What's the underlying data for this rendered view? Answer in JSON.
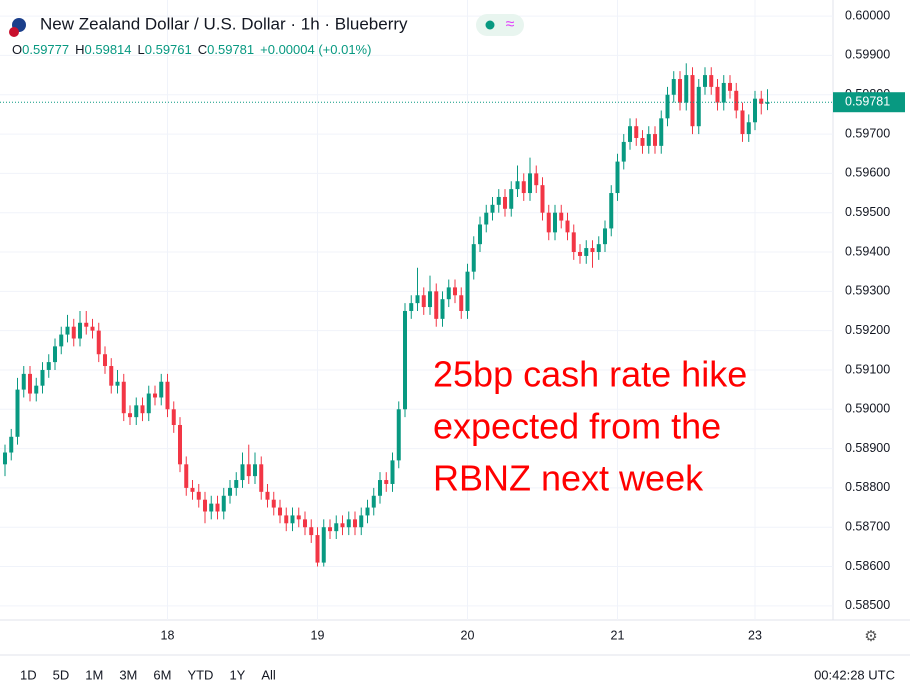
{
  "chart_data": {
    "type": "candlestick",
    "title": "New Zealand Dollar / U.S. Dollar · 1h · Blueberry",
    "header_labels": [
      "O",
      "H",
      "L",
      "C"
    ],
    "change": "+0.00004 (+0.01%)",
    "annotation": [
      "25bp cash rate hike",
      "expected from the",
      "RBNZ next week"
    ],
    "up_color": "#089981",
    "down_color": "#f23645",
    "annotation_color": "#ff0000",
    "ylim": [
      0.58464,
      0.60041
    ],
    "yticks": [
      {
        "value": 0.585,
        "label": "0.58500"
      },
      {
        "value": 0.586,
        "label": "0.58600"
      },
      {
        "value": 0.587,
        "label": "0.58700"
      },
      {
        "value": 0.588,
        "label": "0.58800"
      },
      {
        "value": 0.589,
        "label": "0.58900"
      },
      {
        "value": 0.59,
        "label": "0.59000"
      },
      {
        "value": 0.591,
        "label": "0.59100"
      },
      {
        "value": 0.592,
        "label": "0.59200"
      },
      {
        "value": 0.593,
        "label": "0.59300"
      },
      {
        "value": 0.594,
        "label": "0.59400"
      },
      {
        "value": 0.595,
        "label": "0.59500"
      },
      {
        "value": 0.596,
        "label": "0.59600"
      },
      {
        "value": 0.597,
        "label": "0.59700"
      },
      {
        "value": 0.598,
        "label": "0.59800"
      },
      {
        "value": 0.599,
        "label": "0.59900"
      },
      {
        "value": 0.6,
        "label": "0.60000"
      }
    ],
    "xticks": [
      {
        "value": 26,
        "label": "18"
      },
      {
        "value": 50,
        "label": "19"
      },
      {
        "value": 74,
        "label": "20"
      },
      {
        "value": 98,
        "label": "21"
      },
      {
        "value": 120,
        "label": "23"
      }
    ],
    "grid": true,
    "ohlc": [
      [
        0.5886,
        0.5891,
        0.5883,
        0.5889
      ],
      [
        0.5889,
        0.5895,
        0.5887,
        0.5893
      ],
      [
        0.5893,
        0.5908,
        0.5891,
        0.5905
      ],
      [
        0.5905,
        0.5911,
        0.5903,
        0.5909
      ],
      [
        0.5909,
        0.5911,
        0.5902,
        0.5904
      ],
      [
        0.5904,
        0.5908,
        0.5902,
        0.5906
      ],
      [
        0.5906,
        0.5912,
        0.5904,
        0.591
      ],
      [
        0.591,
        0.5914,
        0.5908,
        0.5912
      ],
      [
        0.5912,
        0.5918,
        0.591,
        0.5916
      ],
      [
        0.5916,
        0.5921,
        0.5914,
        0.5919
      ],
      [
        0.5919,
        0.5924,
        0.5917,
        0.5921
      ],
      [
        0.5921,
        0.5923,
        0.5916,
        0.5918
      ],
      [
        0.5918,
        0.5925,
        0.5916,
        0.5922
      ],
      [
        0.5922,
        0.5925,
        0.5919,
        0.5921
      ],
      [
        0.5921,
        0.5923,
        0.5918,
        0.592
      ],
      [
        0.592,
        0.5922,
        0.5912,
        0.5914
      ],
      [
        0.5914,
        0.5916,
        0.5909,
        0.5911
      ],
      [
        0.5911,
        0.5913,
        0.5904,
        0.5906
      ],
      [
        0.5906,
        0.591,
        0.5904,
        0.5907
      ],
      [
        0.5907,
        0.5909,
        0.5897,
        0.5899
      ],
      [
        0.5899,
        0.5901,
        0.5896,
        0.5898
      ],
      [
        0.5898,
        0.5903,
        0.5896,
        0.5901
      ],
      [
        0.5901,
        0.5903,
        0.5897,
        0.5899
      ],
      [
        0.5899,
        0.5906,
        0.5897,
        0.5904
      ],
      [
        0.5904,
        0.5906,
        0.5901,
        0.5903
      ],
      [
        0.5903,
        0.5909,
        0.5901,
        0.5907
      ],
      [
        0.5907,
        0.5909,
        0.5898,
        0.59
      ],
      [
        0.59,
        0.5902,
        0.5894,
        0.5896
      ],
      [
        0.5896,
        0.5898,
        0.5884,
        0.5886
      ],
      [
        0.5886,
        0.5888,
        0.5878,
        0.588
      ],
      [
        0.588,
        0.5882,
        0.5877,
        0.5879
      ],
      [
        0.5879,
        0.5881,
        0.5875,
        0.5877
      ],
      [
        0.5877,
        0.5879,
        0.5871,
        0.5874
      ],
      [
        0.5874,
        0.5878,
        0.5872,
        0.5876
      ],
      [
        0.5876,
        0.5878,
        0.5872,
        0.5874
      ],
      [
        0.5874,
        0.588,
        0.5872,
        0.5878
      ],
      [
        0.5878,
        0.5882,
        0.5876,
        0.588
      ],
      [
        0.588,
        0.5884,
        0.5878,
        0.5882
      ],
      [
        0.5882,
        0.5889,
        0.588,
        0.5886
      ],
      [
        0.5886,
        0.5891,
        0.5881,
        0.5883
      ],
      [
        0.5883,
        0.5889,
        0.5881,
        0.5886
      ],
      [
        0.5886,
        0.5888,
        0.5877,
        0.5879
      ],
      [
        0.5879,
        0.5881,
        0.5875,
        0.5877
      ],
      [
        0.5877,
        0.5879,
        0.5873,
        0.5875
      ],
      [
        0.5875,
        0.5877,
        0.5871,
        0.5873
      ],
      [
        0.5873,
        0.5875,
        0.5869,
        0.5871
      ],
      [
        0.5871,
        0.5875,
        0.5869,
        0.5873
      ],
      [
        0.5873,
        0.5875,
        0.587,
        0.5872
      ],
      [
        0.5872,
        0.5874,
        0.5868,
        0.587
      ],
      [
        0.587,
        0.5872,
        0.5866,
        0.5868
      ],
      [
        0.5868,
        0.587,
        0.586,
        0.5861
      ],
      [
        0.5861,
        0.5872,
        0.586,
        0.587
      ],
      [
        0.587,
        0.5872,
        0.5867,
        0.5869
      ],
      [
        0.5869,
        0.5873,
        0.5867,
        0.5871
      ],
      [
        0.5871,
        0.5873,
        0.5868,
        0.587
      ],
      [
        0.587,
        0.5874,
        0.5868,
        0.5872
      ],
      [
        0.5872,
        0.5874,
        0.5868,
        0.587
      ],
      [
        0.587,
        0.5875,
        0.5868,
        0.5873
      ],
      [
        0.5873,
        0.5877,
        0.5871,
        0.5875
      ],
      [
        0.5875,
        0.588,
        0.5873,
        0.5878
      ],
      [
        0.5878,
        0.5884,
        0.5876,
        0.5882
      ],
      [
        0.5882,
        0.5884,
        0.5879,
        0.5881
      ],
      [
        0.5881,
        0.5889,
        0.5879,
        0.5887
      ],
      [
        0.5887,
        0.5902,
        0.5885,
        0.59
      ],
      [
        0.59,
        0.5927,
        0.5898,
        0.5925
      ],
      [
        0.5925,
        0.5929,
        0.5923,
        0.5927
      ],
      [
        0.5927,
        0.5936,
        0.5925,
        0.5929
      ],
      [
        0.5929,
        0.5931,
        0.5924,
        0.5926
      ],
      [
        0.5926,
        0.5934,
        0.5924,
        0.593
      ],
      [
        0.593,
        0.5932,
        0.5921,
        0.5923
      ],
      [
        0.5923,
        0.593,
        0.5921,
        0.5928
      ],
      [
        0.5928,
        0.5933,
        0.5926,
        0.5931
      ],
      [
        0.5931,
        0.5933,
        0.5927,
        0.5929
      ],
      [
        0.5929,
        0.5931,
        0.5923,
        0.5925
      ],
      [
        0.5925,
        0.5937,
        0.5923,
        0.5935
      ],
      [
        0.5935,
        0.5944,
        0.5933,
        0.5942
      ],
      [
        0.5942,
        0.5949,
        0.594,
        0.5947
      ],
      [
        0.5947,
        0.5952,
        0.5945,
        0.595
      ],
      [
        0.595,
        0.5954,
        0.5948,
        0.5952
      ],
      [
        0.5952,
        0.5956,
        0.595,
        0.5954
      ],
      [
        0.5954,
        0.5956,
        0.5949,
        0.5951
      ],
      [
        0.5951,
        0.5958,
        0.5949,
        0.5956
      ],
      [
        0.5956,
        0.5962,
        0.5954,
        0.5958
      ],
      [
        0.5958,
        0.596,
        0.5953,
        0.5955
      ],
      [
        0.5955,
        0.5964,
        0.5953,
        0.596
      ],
      [
        0.596,
        0.5962,
        0.5955,
        0.5957
      ],
      [
        0.5957,
        0.5959,
        0.5948,
        0.595
      ],
      [
        0.595,
        0.5952,
        0.5943,
        0.5945
      ],
      [
        0.5945,
        0.5952,
        0.5943,
        0.595
      ],
      [
        0.595,
        0.5952,
        0.5946,
        0.5948
      ],
      [
        0.5948,
        0.595,
        0.5943,
        0.5945
      ],
      [
        0.5945,
        0.5947,
        0.5938,
        0.594
      ],
      [
        0.594,
        0.5942,
        0.5937,
        0.5939
      ],
      [
        0.5939,
        0.5943,
        0.5937,
        0.5941
      ],
      [
        0.5941,
        0.5943,
        0.5936,
        0.594
      ],
      [
        0.594,
        0.5944,
        0.5938,
        0.5942
      ],
      [
        0.5942,
        0.5948,
        0.594,
        0.5946
      ],
      [
        0.5946,
        0.5957,
        0.5944,
        0.5955
      ],
      [
        0.5955,
        0.5965,
        0.5953,
        0.5963
      ],
      [
        0.5963,
        0.597,
        0.5961,
        0.5968
      ],
      [
        0.5968,
        0.5974,
        0.5966,
        0.5972
      ],
      [
        0.5972,
        0.5974,
        0.5967,
        0.5969
      ],
      [
        0.5969,
        0.5971,
        0.5965,
        0.5967
      ],
      [
        0.5967,
        0.5972,
        0.5965,
        0.597
      ],
      [
        0.597,
        0.5972,
        0.5965,
        0.5967
      ],
      [
        0.5967,
        0.5976,
        0.5965,
        0.5974
      ],
      [
        0.5974,
        0.5982,
        0.5972,
        0.598
      ],
      [
        0.598,
        0.5986,
        0.5978,
        0.5984
      ],
      [
        0.5984,
        0.5986,
        0.5976,
        0.5978
      ],
      [
        0.5978,
        0.5988,
        0.5976,
        0.5985
      ],
      [
        0.5985,
        0.5987,
        0.597,
        0.5972
      ],
      [
        0.5972,
        0.5984,
        0.597,
        0.5982
      ],
      [
        0.5982,
        0.5987,
        0.598,
        0.5985
      ],
      [
        0.5985,
        0.5987,
        0.598,
        0.5982
      ],
      [
        0.5982,
        0.5984,
        0.5976,
        0.5978
      ],
      [
        0.5978,
        0.5985,
        0.5976,
        0.5983
      ],
      [
        0.5983,
        0.5985,
        0.5979,
        0.5981
      ],
      [
        0.5981,
        0.5983,
        0.5974,
        0.5976
      ],
      [
        0.5976,
        0.5978,
        0.5968,
        0.597
      ],
      [
        0.597,
        0.5975,
        0.5968,
        0.5973
      ],
      [
        0.5973,
        0.5981,
        0.5971,
        0.5979
      ],
      [
        0.5979,
        0.5981,
        0.5975,
        0.59777
      ],
      [
        0.59777,
        0.59814,
        0.59761,
        0.59781
      ]
    ],
    "toolbar": [
      "1D",
      "5D",
      "1M",
      "3M",
      "6M",
      "YTD",
      "1Y",
      "All"
    ],
    "clock": "00:42:28 UTC"
  }
}
